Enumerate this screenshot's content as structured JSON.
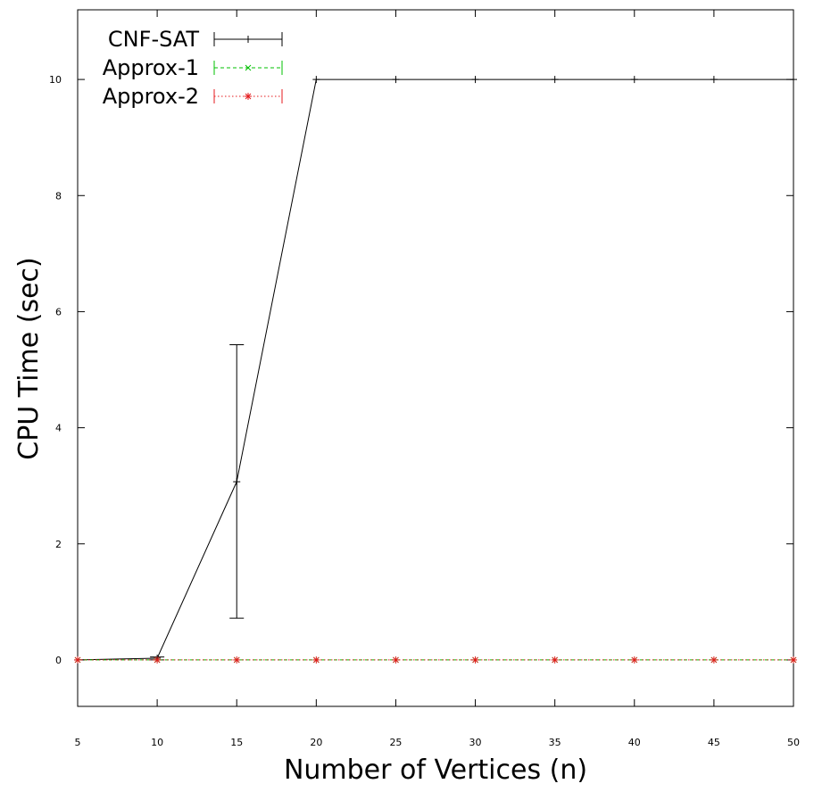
{
  "chart_data": {
    "type": "line",
    "xlabel": "Number of Vertices (n)",
    "ylabel": "CPU Time (sec)",
    "xlim": [
      5,
      50
    ],
    "ylim": [
      -0.8,
      11.2
    ],
    "xticks": [
      5,
      10,
      15,
      20,
      25,
      30,
      35,
      40,
      45,
      50
    ],
    "yticks": [
      0,
      2,
      4,
      6,
      8,
      10
    ],
    "grid": false,
    "legend_position": "top-left",
    "x": [
      5,
      10,
      15,
      20,
      25,
      30,
      35,
      40,
      45,
      50
    ],
    "series": [
      {
        "name": "CNF-SAT",
        "color": "#000000",
        "marker": "plus",
        "style": "solid",
        "values": [
          0.0,
          0.03,
          3.07,
          10.0,
          10.0,
          10.0,
          10.0,
          10.0,
          10.0,
          10.0
        ],
        "error_low": [
          0.0,
          0.0,
          0.72,
          10.0,
          10.0,
          10.0,
          10.0,
          10.0,
          10.0,
          10.0
        ],
        "error_high": [
          0.0,
          0.05,
          5.43,
          10.0,
          10.0,
          10.0,
          10.0,
          10.0,
          10.0,
          10.0
        ]
      },
      {
        "name": "Approx-1",
        "color": "#00c000",
        "marker": "x",
        "style": "dashed",
        "values": [
          0,
          0,
          0,
          0,
          0,
          0,
          0,
          0,
          0,
          0
        ],
        "error_low": [
          0,
          0,
          0,
          0,
          0,
          0,
          0,
          0,
          0,
          0
        ],
        "error_high": [
          0,
          0,
          0,
          0,
          0,
          0,
          0,
          0,
          0,
          0
        ]
      },
      {
        "name": "Approx-2",
        "color": "#e41a1c",
        "marker": "star",
        "style": "dotted",
        "values": [
          0,
          0,
          0,
          0,
          0,
          0,
          0,
          0,
          0,
          0
        ],
        "error_low": [
          0,
          0,
          0,
          0,
          0,
          0,
          0,
          0,
          0,
          0
        ],
        "error_high": [
          0,
          0,
          0,
          0,
          0,
          0,
          0,
          0,
          0,
          0
        ]
      }
    ]
  }
}
